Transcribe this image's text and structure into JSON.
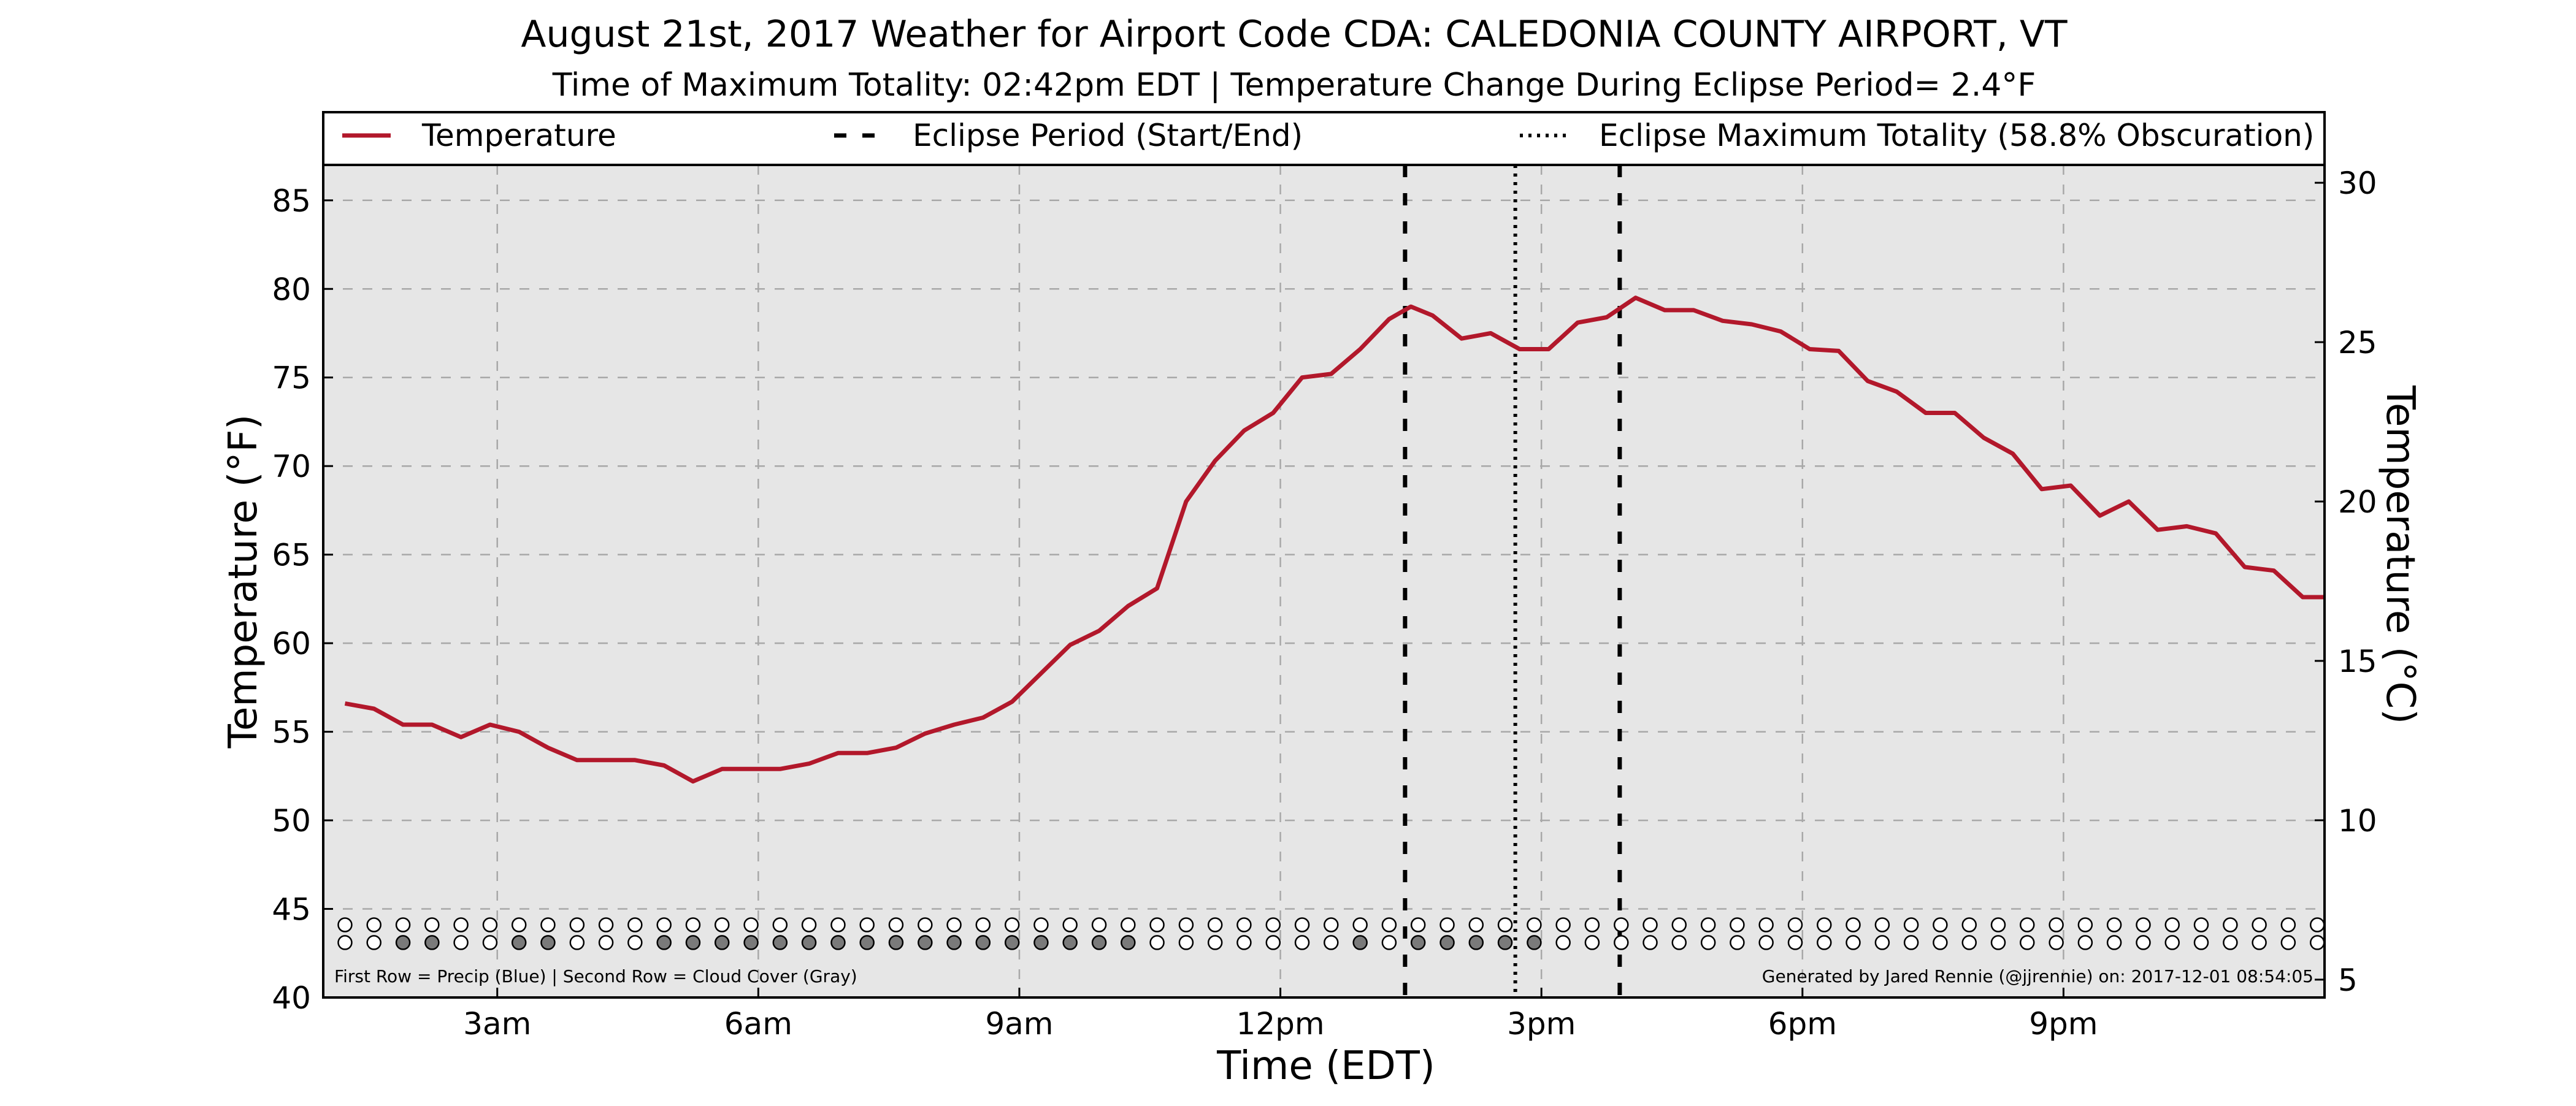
{
  "chart_data": {
    "type": "line",
    "title": "August 21st, 2017 Weather for Airport Code CDA: CALEDONIA COUNTY AIRPORT, VT",
    "subtitle": "Time of Maximum Totality: 02:42pm EDT | Temperature Change During Eclipse Period= 2.4°F",
    "xlabel": "Time (EDT)",
    "ylabel": "Temperature (°F)",
    "ylabel_right": "Temperature (°C)",
    "xlim": [
      1.0,
      24.0
    ],
    "ylim": [
      40,
      87
    ],
    "ylim_right_celsius": [
      4.44,
      30.56
    ],
    "grid": true,
    "legend_position": "top",
    "x_ticks": [
      {
        "x": 3,
        "label": "3am"
      },
      {
        "x": 6,
        "label": "6am"
      },
      {
        "x": 9,
        "label": "9am"
      },
      {
        "x": 12,
        "label": "12pm"
      },
      {
        "x": 15,
        "label": "3pm"
      },
      {
        "x": 18,
        "label": "6pm"
      },
      {
        "x": 21,
        "label": "9pm"
      }
    ],
    "y_ticks_left": [
      40,
      45,
      50,
      55,
      60,
      65,
      70,
      75,
      80,
      85
    ],
    "y_ticks_right": [
      5,
      10,
      15,
      20,
      25,
      30
    ],
    "legend": [
      {
        "label": "Temperature",
        "style": "solid",
        "color": "#b2182b"
      },
      {
        "label": "Eclipse Period (Start/End)",
        "style": "dashed",
        "color": "#000000"
      },
      {
        "label": "Eclipse Maximum Totality (58.8% Obscuration)",
        "style": "dotted",
        "color": "#000000"
      }
    ],
    "series": [
      {
        "name": "Temperature",
        "color": "#b2182b",
        "x": [
          1.25,
          1.583,
          1.917,
          2.25,
          2.583,
          2.917,
          3.25,
          3.583,
          3.917,
          4.25,
          4.583,
          4.917,
          5.25,
          5.583,
          5.917,
          6.25,
          6.583,
          6.917,
          7.25,
          7.583,
          7.917,
          8.25,
          8.583,
          8.917,
          9.25,
          9.583,
          9.917,
          10.25,
          10.583,
          10.917,
          11.25,
          11.583,
          11.917,
          12.25,
          12.583,
          12.917,
          13.25,
          13.5,
          13.75,
          14.083,
          14.417,
          14.75,
          15.083,
          15.417,
          15.75,
          16.083,
          16.417,
          16.75,
          17.083,
          17.417,
          17.75,
          18.083,
          18.417,
          18.75,
          19.083,
          19.417,
          19.75,
          20.083,
          20.417,
          20.75,
          21.083,
          21.417,
          21.75,
          22.083,
          22.417,
          22.75,
          23.083,
          23.417,
          23.75,
          24.0
        ],
        "values": [
          56.6,
          56.3,
          55.4,
          55.4,
          54.7,
          55.4,
          55.0,
          54.1,
          53.4,
          53.4,
          53.4,
          53.1,
          52.2,
          52.9,
          52.9,
          52.9,
          53.2,
          53.8,
          53.8,
          54.1,
          54.9,
          55.4,
          55.8,
          56.7,
          58.3,
          59.9,
          60.7,
          62.1,
          63.1,
          68.0,
          70.3,
          72.0,
          73.0,
          75.0,
          75.2,
          76.6,
          78.3,
          79.0,
          78.5,
          77.2,
          77.5,
          76.6,
          76.6,
          78.1,
          78.4,
          79.5,
          78.8,
          78.8,
          78.2,
          78.0,
          77.6,
          76.6,
          76.5,
          74.8,
          74.2,
          73.0,
          73.0,
          71.6,
          70.7,
          68.7,
          68.9,
          67.2,
          68.0,
          66.4,
          66.6,
          66.2,
          64.3,
          64.1,
          62.6,
          62.6
        ]
      }
    ],
    "eclipse_start": 13.433,
    "eclipse_max": 14.7,
    "eclipse_end": 15.9,
    "row_markers": {
      "x": [
        1.25,
        1.583,
        1.917,
        2.25,
        2.583,
        2.917,
        3.25,
        3.583,
        3.917,
        4.25,
        4.583,
        4.917,
        5.25,
        5.583,
        5.917,
        6.25,
        6.583,
        6.917,
        7.25,
        7.583,
        7.917,
        8.25,
        8.583,
        8.917,
        9.25,
        9.583,
        9.917,
        10.25,
        10.583,
        10.917,
        11.25,
        11.583,
        11.917,
        12.25,
        12.583,
        12.917,
        13.25,
        13.583,
        13.917,
        14.25,
        14.583,
        14.917,
        15.25,
        15.583,
        15.917,
        16.25,
        16.583,
        16.917,
        17.25,
        17.583,
        17.917,
        18.25,
        18.583,
        18.917,
        19.25,
        19.583,
        19.917,
        20.25,
        20.583,
        20.917,
        21.25,
        21.583,
        21.917,
        22.25,
        22.583,
        22.917,
        23.25,
        23.583,
        23.917
      ],
      "precip_row_y": 44.1,
      "cloud_row_y": 43.1,
      "cloud_cover_shaded": [
        0,
        0,
        1,
        1,
        0,
        0,
        1,
        1,
        0,
        0,
        0,
        1,
        1,
        1,
        1,
        1,
        1,
        1,
        1,
        1,
        1,
        1,
        1,
        1,
        1,
        1,
        1,
        1,
        0,
        0,
        0,
        0,
        0,
        0,
        0,
        1,
        0,
        1,
        1,
        1,
        1,
        1,
        0,
        0,
        0,
        0,
        0,
        0,
        0,
        0,
        0,
        0,
        0,
        0,
        0,
        0,
        0,
        0,
        0,
        0,
        0,
        0,
        0,
        0,
        0,
        0,
        0,
        0,
        0
      ],
      "precip_color": "#ffffff",
      "cloud_fill_color": "#7a7a7a"
    },
    "footnote_left": "First Row = Precip (Blue) | Second Row = Cloud Cover (Gray)",
    "footnote_right": "Generated by Jared Rennie (@jjrennie) on: 2017-12-01 08:54:05",
    "colors": {
      "plot_background": "#e6e6e6",
      "grid": "#a8a8a8",
      "temperature_line": "#b2182b"
    }
  }
}
